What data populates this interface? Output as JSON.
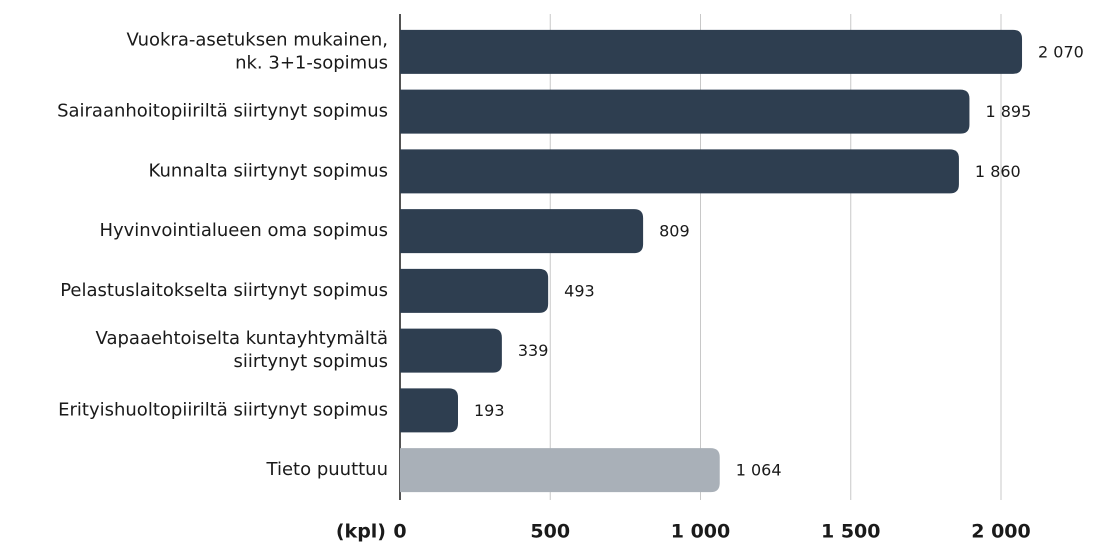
{
  "chart_data": {
    "type": "bar",
    "orientation": "horizontal",
    "categories": [
      [
        "Vuokra-asetuksen mukainen,",
        "nk. 3+1-sopimus"
      ],
      [
        "Sairaanhoitopiiriltä siirtynyt sopimus"
      ],
      [
        "Kunnalta siirtynyt sopimus"
      ],
      [
        "Hyvinvointialueen oma sopimus"
      ],
      [
        "Pelastuslaitokselta siirtynyt sopimus"
      ],
      [
        "Vapaaehtoiselta kuntayhtymältä",
        "siirtynyt sopimus"
      ],
      [
        "Erityishuoltopiiriltä siirtynyt sopimus"
      ],
      [
        "Tieto puuttuu"
      ]
    ],
    "values": [
      2070,
      1895,
      1860,
      809,
      493,
      339,
      193,
      1064
    ],
    "value_labels": [
      "2 070",
      "1 895",
      "1 860",
      "809",
      "493",
      "339",
      "193",
      "1 064"
    ],
    "colors": [
      "#2e3e50",
      "#2e3e50",
      "#2e3e50",
      "#2e3e50",
      "#2e3e50",
      "#2e3e50",
      "#2e3e50",
      "#a9b0b8"
    ],
    "x_label": "(kpl)",
    "xlim": [
      0,
      2000
    ],
    "xticks": [
      0,
      500,
      {
        "value": 1000,
        "label": "1 000"
      },
      {
        "value": 1500,
        "label": "1 500"
      },
      {
        "value": 2000,
        "label": "2 000"
      }
    ],
    "grid": true
  }
}
